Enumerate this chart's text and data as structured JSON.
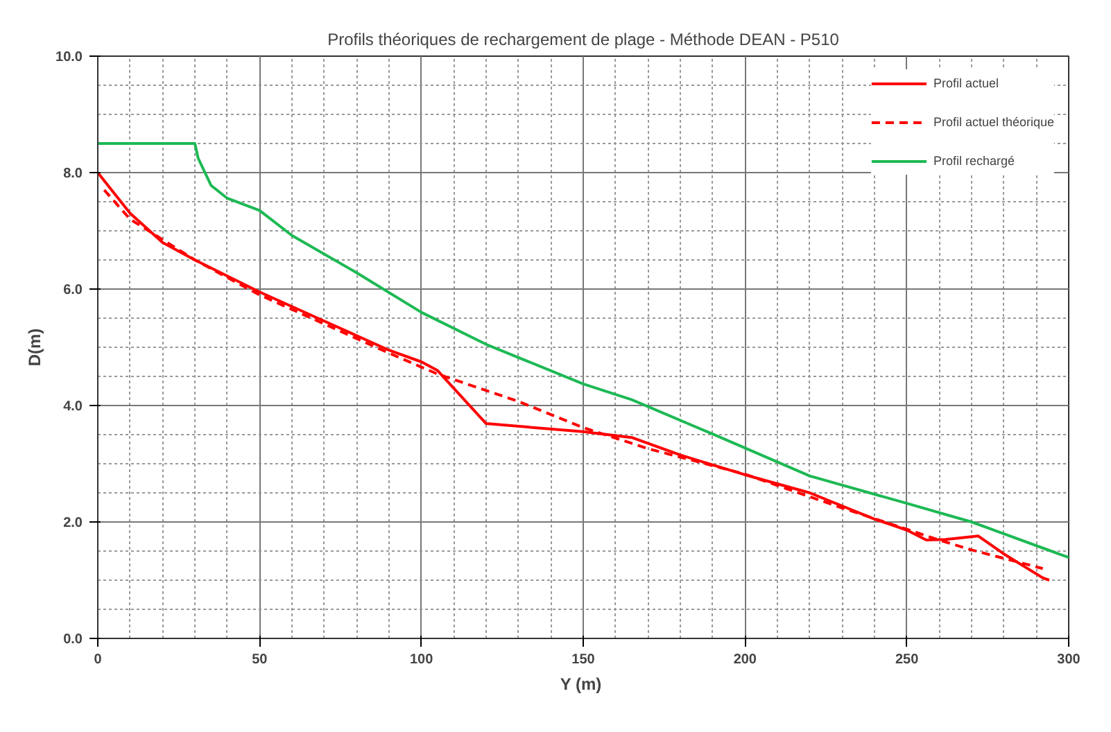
{
  "chart_data": {
    "type": "line",
    "title": "Profils théoriques de rechargement de plage - Méthode DEAN - P510",
    "xlabel": "Y  (m)",
    "ylabel": "D(m)",
    "xlim": [
      0,
      300
    ],
    "ylim": [
      0,
      10
    ],
    "xticks": [
      0,
      {
        "value": 10,
        "label": null
      },
      {
        "value": 20,
        "label": null
      },
      {
        "value": 30,
        "label": null
      },
      {
        "value": 40,
        "label": null
      },
      50,
      {
        "value": 60,
        "label": null
      },
      {
        "value": 70,
        "label": null
      },
      {
        "value": 80,
        "label": null
      },
      {
        "value": 90,
        "label": null
      },
      100,
      {
        "value": 110,
        "label": null
      },
      {
        "value": 120,
        "label": null
      },
      {
        "value": 130,
        "label": null
      },
      {
        "value": 140,
        "label": null
      },
      150,
      {
        "value": 160,
        "label": null
      },
      {
        "value": 170,
        "label": null
      },
      {
        "value": 180,
        "label": null
      },
      {
        "value": 190,
        "label": null
      },
      200,
      {
        "value": 210,
        "label": null
      },
      {
        "value": 220,
        "label": null
      },
      {
        "value": 230,
        "label": null
      },
      {
        "value": 240,
        "label": null
      },
      250,
      {
        "value": 260,
        "label": null
      },
      {
        "value": 270,
        "label": null
      },
      {
        "value": 280,
        "label": null
      },
      {
        "value": 290,
        "label": null
      },
      300
    ],
    "yticks": [
      {
        "value": 0,
        "label": "0.0"
      },
      {
        "value": 0.5,
        "label": null
      },
      {
        "value": 1,
        "label": null
      },
      {
        "value": 1.5,
        "label": null
      },
      {
        "value": 2,
        "label": "2.0"
      },
      {
        "value": 2.5,
        "label": null
      },
      {
        "value": 3,
        "label": null
      },
      {
        "value": 3.5,
        "label": null
      },
      {
        "value": 4,
        "label": "4.0"
      },
      {
        "value": 4.5,
        "label": null
      },
      {
        "value": 5,
        "label": null
      },
      {
        "value": 5.5,
        "label": null
      },
      {
        "value": 6,
        "label": "6.0"
      },
      {
        "value": 6.5,
        "label": null
      },
      {
        "value": 7,
        "label": null
      },
      {
        "value": 7.5,
        "label": null
      },
      {
        "value": 8,
        "label": "8.0"
      },
      {
        "value": 8.5,
        "label": null
      },
      {
        "value": 9,
        "label": null
      },
      {
        "value": 9.5,
        "label": null
      },
      {
        "value": 10,
        "label": "10.0"
      }
    ],
    "grid": true,
    "legend": "top right",
    "series": [
      {
        "name": "Profil actuel",
        "color": "#ff0000",
        "line_style": "solid",
        "x": [
          0,
          10,
          20,
          30,
          50,
          70,
          90,
          100,
          105,
          120,
          150,
          165,
          180,
          200,
          220,
          240,
          250,
          256,
          262,
          272,
          280,
          292,
          294
        ],
        "values": [
          8.0,
          7.3,
          6.8,
          6.5,
          5.95,
          5.45,
          4.95,
          4.75,
          4.6,
          3.69,
          3.55,
          3.45,
          3.15,
          2.81,
          2.5,
          2.05,
          1.86,
          1.69,
          1.7,
          1.76,
          1.45,
          1.04,
          1.0
        ]
      },
      {
        "name": "Profil actuel théorique",
        "color": "#ff0000",
        "line_style": "dashed",
        "x": [
          2,
          10,
          20,
          30,
          50,
          70,
          90,
          100,
          105,
          130,
          150,
          170,
          200,
          230,
          260,
          270,
          292
        ],
        "values": [
          7.7,
          7.2,
          6.85,
          6.5,
          5.9,
          5.4,
          4.9,
          4.66,
          4.54,
          4.07,
          3.62,
          3.26,
          2.82,
          2.24,
          1.69,
          1.52,
          1.2
        ]
      },
      {
        "name": "Profil rechargé",
        "color": "#1db954",
        "line_style": "solid",
        "x": [
          0,
          30,
          31,
          35,
          40,
          50,
          60,
          80,
          100,
          120,
          150,
          165,
          190,
          220,
          250,
          270,
          300
        ],
        "values": [
          8.5,
          8.5,
          8.25,
          7.78,
          7.56,
          7.35,
          6.92,
          6.28,
          5.6,
          5.05,
          4.37,
          4.1,
          3.51,
          2.79,
          2.32,
          2.0,
          1.39
        ]
      }
    ]
  }
}
